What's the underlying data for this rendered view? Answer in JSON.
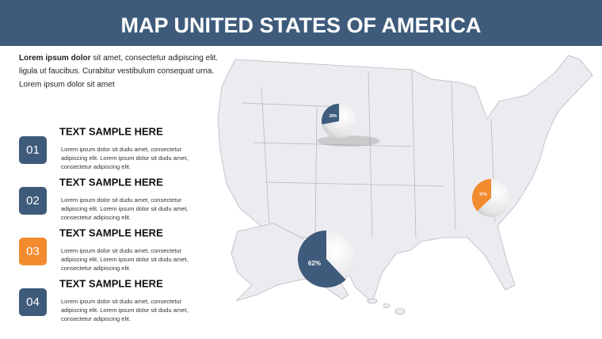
{
  "header": {
    "title": "MAP UNITED STATES OF AMERICA"
  },
  "intro": {
    "bold": "Lorem ipsum dolor",
    "lines": [
      " sit amet, consectetur adipiscing elit.",
      "ligula ut faucibus. Curabitur vestibulum consequat urna.",
      "Lorem ipsum dolor sit amet"
    ]
  },
  "items": [
    {
      "number": "01",
      "color": "#3e5b7b",
      "title": "TEXT SAMPLE HERE",
      "lines": [
        "Lorem ipsum dolor sit dudu amet, consectetur",
        "adipiscing elit. Lorem ipsum dolor sit dudu amet,",
        "consectetur adipiscing elit."
      ]
    },
    {
      "number": "02",
      "color": "#3e5b7b",
      "title": "TEXT SAMPLE HERE",
      "lines": [
        "Lorem ipsum dolor sit dudu amet, consectetur",
        "adipiscing elit. Lorem ipsum dolor sit dudu amet,",
        "consectetur adipiscing elit."
      ]
    },
    {
      "number": "03",
      "color": "#f28a2e",
      "title": "TEXT SAMPLE HERE",
      "lines": [
        "Lorem ipsum dolor sit dudu amet, consectetur",
        "adipiscing elit. Lorem ipsum dolor sit dudu amet,",
        "consectetur adipiscing elit."
      ]
    },
    {
      "number": "04",
      "color": "#3e5b7b",
      "title": "TEXT SAMPLE HERE",
      "lines": [
        "Lorem ipsum dolor sit dudu amet, consectetur",
        "adipiscing elit. Lorem ipsum dolor sit dudu amet,",
        "consectetur adipiscing elit."
      ]
    }
  ],
  "pies": [
    {
      "value": 28,
      "label": "28%",
      "color": "#3e5b7b"
    },
    {
      "value": 37,
      "label": "37%",
      "color": "#f28a2e"
    },
    {
      "value": 62,
      "label": "62%",
      "color": "#3e5b7b"
    }
  ]
}
